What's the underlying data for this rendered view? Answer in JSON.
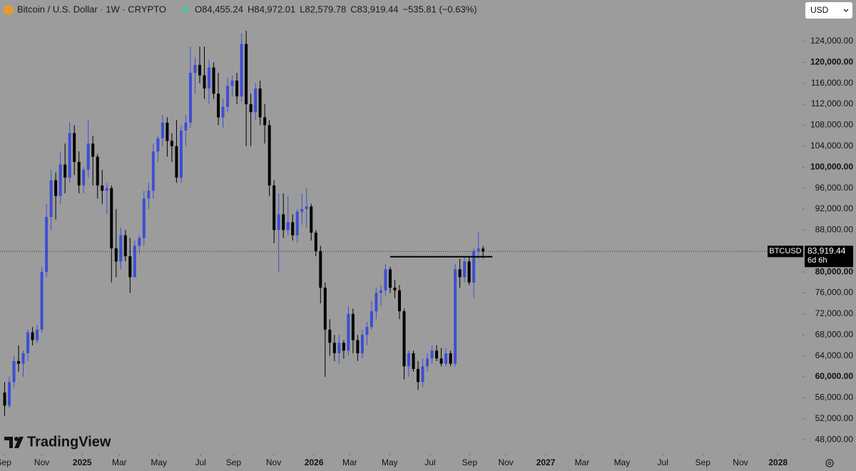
{
  "chart_data": {
    "type": "candlestick",
    "header": {
      "symbol": "Bitcoin / U.S. Dollar · 1W · CRYPTO",
      "ohlc": [
        {
          "key": "O",
          "label": "84,455.24"
        },
        {
          "key": "H",
          "label": "84,972.01"
        },
        {
          "key": "L",
          "label": "82,579.78"
        },
        {
          "key": "C",
          "label": "83,919.44"
        }
      ],
      "change": "−535.81 (−0.63%)"
    },
    "currency": "USD",
    "brand": "TradingView",
    "up_color": "#3c4fd4",
    "down_color": "#000000",
    "x": [
      0,
      1,
      2,
      3,
      4,
      5,
      6,
      7,
      8,
      9,
      10,
      11,
      12,
      13,
      14,
      15,
      16,
      17,
      18,
      19,
      20,
      21,
      22,
      23,
      24,
      25,
      26,
      27,
      28,
      29,
      30,
      31,
      32,
      33,
      34,
      35,
      36,
      37,
      38,
      39,
      40,
      41,
      42,
      43,
      44,
      45,
      46,
      47,
      48,
      49,
      50,
      51,
      52,
      53,
      54,
      55,
      56,
      57,
      58,
      59,
      60,
      61,
      62,
      63,
      64,
      65,
      66,
      67,
      68,
      69,
      70,
      71,
      72,
      73,
      74,
      75,
      76,
      77,
      78,
      79,
      80,
      81,
      82,
      83,
      84,
      85,
      86,
      87,
      88,
      89,
      90,
      91,
      92,
      93,
      94,
      95,
      96,
      97,
      98,
      99,
      100,
      101,
      102,
      103
    ],
    "open": [
      57000,
      54500,
      59000,
      63000,
      62500,
      64500,
      68500,
      67000,
      69000,
      80000,
      90500,
      97500,
      94500,
      100500,
      98000,
      106500,
      101000,
      96500,
      99500,
      104500,
      102000,
      96500,
      95500,
      96000,
      84500,
      82000,
      87000,
      83000,
      79000,
      85000,
      86500,
      94000,
      95500,
      103000,
      105500,
      108500,
      105000,
      104000,
      98000,
      107000,
      108500,
      118000,
      119500,
      117500,
      115000,
      119000,
      114000,
      109500,
      111500,
      115500,
      116500,
      113500,
      123500,
      112000,
      110500,
      115000,
      109500,
      108000,
      96500,
      88000,
      91000,
      88000,
      89500,
      87000,
      91500,
      92000,
      92500,
      87500,
      84000,
      77000,
      69000,
      66500,
      64500,
      66500,
      65000,
      72000,
      67000,
      64500,
      68000,
      69500,
      72500,
      76000,
      76500,
      80500,
      77000,
      76500,
      72500,
      62000,
      64500,
      61500,
      59000,
      62000,
      63500,
      65000,
      63500,
      62500,
      64500,
      62500,
      80500,
      79000,
      82000,
      78000,
      84000,
      84455.24
    ],
    "high": [
      59000,
      60000,
      64000,
      66000,
      65000,
      69000,
      69500,
      70000,
      81000,
      93000,
      99500,
      99000,
      103000,
      104500,
      108500,
      108000,
      103000,
      100000,
      109000,
      106000,
      102500,
      99500,
      97000,
      96500,
      92000,
      88500,
      88000,
      86500,
      86000,
      87000,
      95500,
      97000,
      104500,
      106000,
      110000,
      109500,
      106500,
      109000,
      108000,
      110000,
      123000,
      121000,
      123000,
      123000,
      120500,
      120000,
      118000,
      113000,
      117000,
      117500,
      118000,
      125500,
      126000,
      114000,
      116000,
      116500,
      112000,
      109000,
      97500,
      95000,
      95000,
      94500,
      91000,
      92000,
      95000,
      96000,
      93000,
      88000,
      85000,
      78000,
      71000,
      68000,
      68000,
      67000,
      73500,
      73000,
      68000,
      69000,
      70500,
      74500,
      77000,
      77500,
      81500,
      81000,
      78500,
      77500,
      73000,
      65000,
      65000,
      63000,
      63500,
      64500,
      66000,
      66000,
      65500,
      65500,
      65000,
      81500,
      82500,
      83000,
      83000,
      84500,
      87500,
      84972.01
    ],
    "low": [
      52500,
      54000,
      58000,
      61000,
      60000,
      63000,
      66000,
      66500,
      68500,
      79000,
      88000,
      90000,
      93000,
      95000,
      97000,
      98500,
      95000,
      95000,
      98000,
      96500,
      94000,
      93000,
      91000,
      78000,
      79000,
      80500,
      82000,
      76000,
      79000,
      83500,
      85000,
      92000,
      94000,
      101000,
      104000,
      102000,
      101000,
      97000,
      97000,
      104000,
      107500,
      114000,
      116000,
      113000,
      112000,
      113000,
      108000,
      107500,
      110500,
      113500,
      112000,
      112500,
      104000,
      104000,
      109000,
      108000,
      104500,
      94500,
      85500,
      80000,
      86500,
      87000,
      86000,
      85500,
      89000,
      88500,
      86000,
      83000,
      74000,
      60000,
      64000,
      63000,
      62500,
      63500,
      64000,
      64500,
      63000,
      63500,
      66000,
      69000,
      71000,
      73500,
      75500,
      76000,
      75000,
      71000,
      59500,
      60000,
      61000,
      57500,
      58000,
      61000,
      62500,
      63000,
      62000,
      62000,
      62000,
      62000,
      77000,
      78000,
      77500,
      75000,
      82500,
      82579.78
    ],
    "close": [
      54500,
      59000,
      63000,
      62500,
      64500,
      68500,
      67000,
      69000,
      80000,
      90500,
      97500,
      94500,
      100500,
      98000,
      106500,
      101000,
      96500,
      99500,
      104500,
      102000,
      96500,
      95500,
      96000,
      84500,
      82000,
      87000,
      83000,
      79000,
      85000,
      86500,
      94000,
      95500,
      103000,
      105500,
      108500,
      105000,
      104000,
      98000,
      107000,
      108500,
      118000,
      119500,
      117500,
      115000,
      119000,
      114000,
      109500,
      111500,
      115500,
      116500,
      113500,
      123500,
      112000,
      110500,
      115000,
      109500,
      108000,
      96500,
      88000,
      91000,
      88000,
      89500,
      87000,
      91500,
      92000,
      92500,
      87500,
      84000,
      77000,
      69000,
      66500,
      64500,
      66500,
      65000,
      72000,
      67000,
      64500,
      68000,
      69500,
      72500,
      76000,
      76500,
      80500,
      77000,
      76500,
      72500,
      62000,
      64500,
      61500,
      59000,
      62000,
      63500,
      65000,
      63500,
      62500,
      64500,
      62500,
      80500,
      79000,
      82000,
      78000,
      84000,
      84455.24,
      83919.44
    ],
    "last_price": {
      "symbol": "BTCUSD",
      "label": "83,919.44",
      "countdown": "6d 6h"
    },
    "annotations": [
      {
        "type": "hline",
        "y": 82900,
        "x": [
          83,
          105
        ]
      }
    ],
    "xlim": [
      -1,
      171
    ],
    "xticks": [
      {
        "value": -0.2,
        "label": "Sep"
      },
      {
        "value": 8.0,
        "label": "Nov"
      },
      {
        "value": 16.7,
        "label": "2025"
      },
      {
        "value": 24.7,
        "label": "Mar"
      },
      {
        "value": 33.2,
        "label": "May"
      },
      {
        "value": 42.2,
        "label": "Jul"
      },
      {
        "value": 49.3,
        "label": "Sep"
      },
      {
        "value": 57.9,
        "label": "Nov"
      },
      {
        "value": 66.6,
        "label": "2026"
      },
      {
        "value": 74.3,
        "label": "Mar"
      },
      {
        "value": 82.9,
        "label": "May"
      },
      {
        "value": 91.6,
        "label": "Jul"
      },
      {
        "value": 100.1,
        "label": "Sep"
      },
      {
        "value": 107.9,
        "label": "Nov"
      },
      {
        "value": 116.5,
        "label": "2027"
      },
      {
        "value": 124.3,
        "label": "Mar"
      },
      {
        "value": 132.9,
        "label": "May"
      },
      {
        "value": 141.7,
        "label": "Jul"
      },
      {
        "value": 150.3,
        "label": "Sep"
      },
      {
        "value": 158.4,
        "label": "Nov"
      },
      {
        "value": 166.5,
        "label": "2028"
      }
    ],
    "ylim": [
      45300,
      127800
    ],
    "yticks": [
      {
        "value": 124000,
        "label": "124,000.00"
      },
      {
        "value": 120000,
        "label": "120,000.00",
        "bold": true
      },
      {
        "value": 116000,
        "label": "116,000.00"
      },
      {
        "value": 112000,
        "label": "112,000.00"
      },
      {
        "value": 108000,
        "label": "108,000.00"
      },
      {
        "value": 104000,
        "label": "104,000.00"
      },
      {
        "value": 100000,
        "label": "100,000.00",
        "bold": true
      },
      {
        "value": 96000,
        "label": "96,000.00"
      },
      {
        "value": 92000,
        "label": "92,000.00"
      },
      {
        "value": 88000,
        "label": "88,000.00"
      },
      {
        "value": 84000,
        "label": "84,000.00"
      },
      {
        "value": 80000,
        "label": "80,000.00",
        "bold": true
      },
      {
        "value": 76000,
        "label": "76,000.00"
      },
      {
        "value": 72000,
        "label": "72,000.00"
      },
      {
        "value": 68000,
        "label": "68,000.00"
      },
      {
        "value": 64000,
        "label": "64,000.00"
      },
      {
        "value": 60000,
        "label": "60,000.00",
        "bold": true
      },
      {
        "value": 56000,
        "label": "56,000.00"
      },
      {
        "value": 52000,
        "label": "52,000.00"
      },
      {
        "value": 48000,
        "label": "48,000.00"
      }
    ],
    "grid": false
  }
}
